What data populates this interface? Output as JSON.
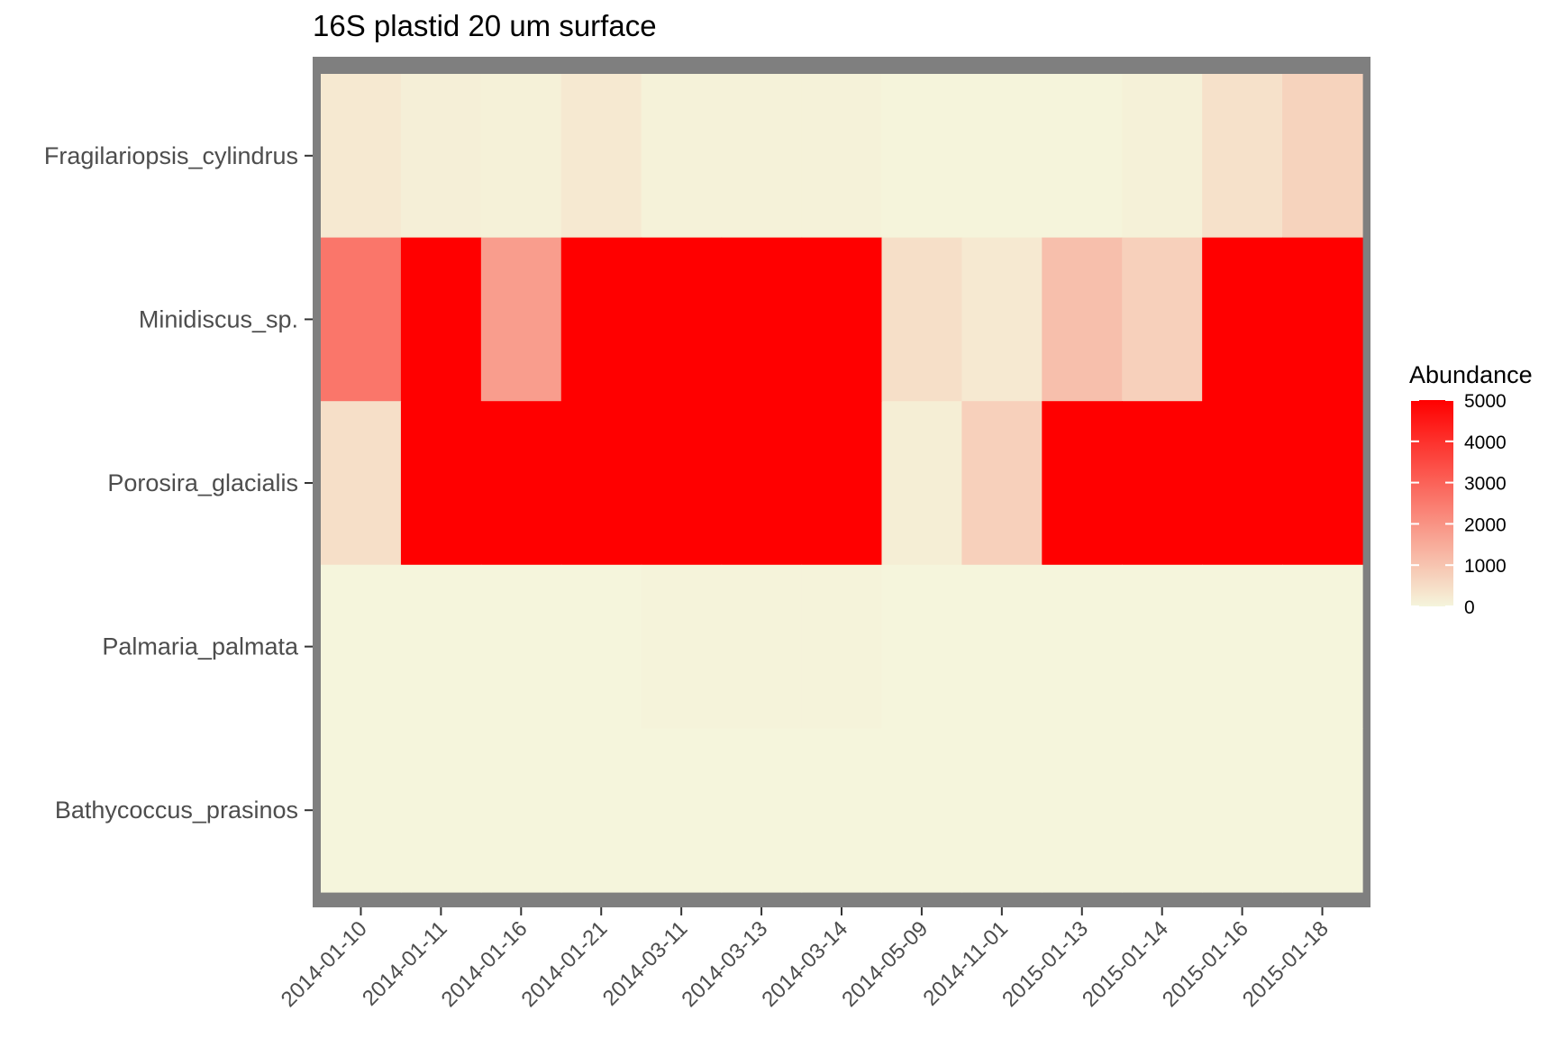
{
  "chart_data": {
    "type": "heatmap",
    "title": "16S plastid 20 um surface",
    "xlabel": "",
    "ylabel": "",
    "x": [
      "2014-01-10",
      "2014-01-11",
      "2014-01-16",
      "2014-01-21",
      "2014-03-11",
      "2014-03-13",
      "2014-03-14",
      "2014-05-09",
      "2014-11-01",
      "2015-01-13",
      "2015-01-14",
      "2015-01-16",
      "2015-01-18"
    ],
    "y": [
      "Fragilariopsis_cylindrus",
      "Minidiscus_sp.",
      "Porosira_glacialis",
      "Palmaria_palmata",
      "Bathycoccus_prasinos"
    ],
    "values": [
      [
        250,
        120,
        80,
        250,
        60,
        60,
        60,
        20,
        20,
        20,
        80,
        400,
        700
      ],
      [
        2600,
        5000,
        1800,
        5000,
        5000,
        5000,
        5000,
        450,
        250,
        1100,
        750,
        5000,
        5000
      ],
      [
        450,
        5000,
        5000,
        5000,
        5000,
        5000,
        5000,
        150,
        750,
        5000,
        5000,
        5000,
        5000
      ],
      [
        0,
        0,
        0,
        0,
        40,
        40,
        40,
        0,
        0,
        0,
        0,
        0,
        0
      ],
      [
        0,
        0,
        0,
        0,
        0,
        0,
        0,
        5,
        5,
        5,
        5,
        5,
        5
      ]
    ],
    "color_scale": {
      "low": "#F5F5DC",
      "high": "#FF0000",
      "limits": [
        0,
        5000
      ]
    },
    "legend": {
      "title": "Abundance",
      "ticks": [
        "0",
        "1000",
        "2000",
        "3000",
        "4000",
        "5000"
      ],
      "position": "right"
    },
    "panel_border_color": "#7f7f7f"
  }
}
